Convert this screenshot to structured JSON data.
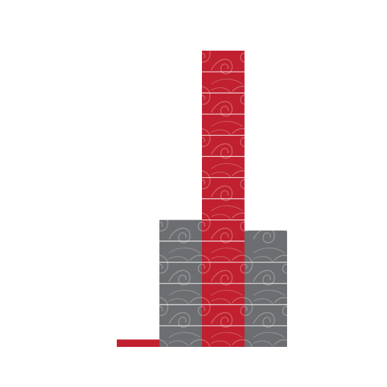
{
  "chart_data": {
    "type": "bar",
    "title": "",
    "xlabel": "",
    "ylabel": "",
    "categories": [
      "",
      "",
      "",
      ""
    ],
    "values": [
      0.35,
      6.0,
      14.0,
      5.5
    ],
    "ylim": [
      0,
      14
    ],
    "grid": false,
    "legend": "none",
    "colors": {
      "red": "#c0202f",
      "gray": "#6d6e71",
      "divider": "#ffffff",
      "swirl": "#ffffff"
    },
    "bar_colors": [
      "red",
      "gray",
      "red",
      "gray"
    ],
    "pattern": "wave-swirl-texture"
  }
}
